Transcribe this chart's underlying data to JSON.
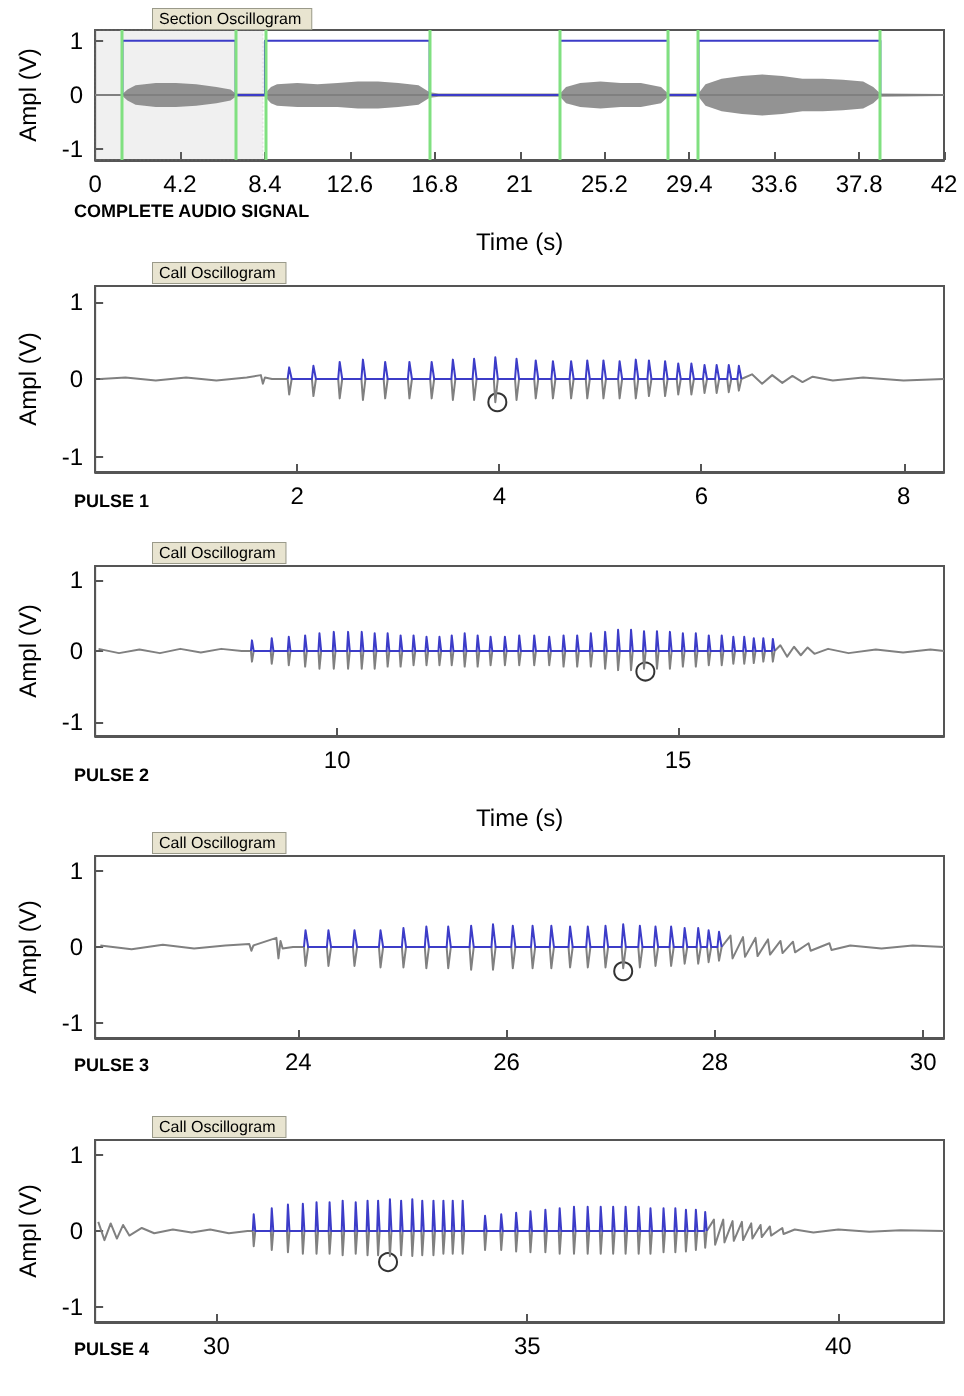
{
  "chart_data": [
    {
      "type": "line",
      "xlabel": "Time (s)",
      "ylabel": "Ampl (V)",
      "annotations": [
        "Section Oscillogram",
        "COMPLETE AUDIO SIGNAL"
      ],
      "xlim": [
        0,
        42
      ],
      "xticks": [
        0,
        4.2,
        8.4,
        12.6,
        16.8,
        21,
        25.2,
        29.4,
        33.6,
        37.8,
        42
      ],
      "ylim": [
        -1.2,
        1.2
      ],
      "yticks": [
        -1,
        0,
        1
      ],
      "grid": false,
      "marker": "none",
      "series": [
        {
          "color": "#808080",
          "x": [
            0,
            1.35,
            1.6,
            2,
            3,
            4,
            5,
            6,
            6.7,
            6.95,
            8.4,
            8.7,
            9,
            10,
            11,
            12,
            13,
            14,
            15,
            16,
            16.55,
            17,
            20,
            23.0,
            23.3,
            24,
            25,
            26,
            27,
            28,
            28.35,
            29.1,
            29.85,
            30.2,
            31,
            32,
            33,
            34,
            35,
            36,
            37,
            38,
            38.5,
            38.85,
            42
          ],
          "values": [
            0,
            0,
            0,
            0,
            0,
            0,
            0,
            0,
            0,
            0,
            0,
            0,
            0,
            0,
            0,
            0,
            0,
            0,
            0,
            0,
            0,
            0,
            0,
            0,
            0,
            0,
            0,
            0,
            0,
            0,
            0,
            0,
            0,
            0,
            0,
            0,
            0,
            0,
            0,
            0,
            0,
            0,
            0,
            0,
            0
          ],
          "upper": [
            0.02,
            0.02,
            0.1,
            0.18,
            0.22,
            0.22,
            0.2,
            0.15,
            0.1,
            0.03,
            0.03,
            0.15,
            0.2,
            0.22,
            0.2,
            0.22,
            0.25,
            0.25,
            0.22,
            0.18,
            0.05,
            0.03,
            0.03,
            0.03,
            0.15,
            0.22,
            0.25,
            0.22,
            0.22,
            0.15,
            0.03,
            0.03,
            0.03,
            0.2,
            0.3,
            0.35,
            0.38,
            0.35,
            0.3,
            0.3,
            0.28,
            0.25,
            0.15,
            0.03,
            0.02
          ],
          "lower": [
            -0.02,
            -0.02,
            -0.1,
            -0.18,
            -0.22,
            -0.22,
            -0.2,
            -0.15,
            -0.1,
            -0.03,
            -0.03,
            -0.15,
            -0.2,
            -0.22,
            -0.22,
            -0.22,
            -0.25,
            -0.25,
            -0.22,
            -0.18,
            -0.05,
            -0.03,
            -0.03,
            -0.03,
            -0.15,
            -0.22,
            -0.25,
            -0.22,
            -0.22,
            -0.15,
            -0.03,
            -0.03,
            -0.03,
            -0.2,
            -0.3,
            -0.35,
            -0.38,
            -0.35,
            -0.3,
            -0.3,
            -0.28,
            -0.25,
            -0.15,
            -0.03,
            -0.02
          ]
        },
        {
          "color": "#3c3cc8",
          "x": [
            1.35,
            1.35,
            6.95,
            6.95,
            8.4,
            8.4,
            16.55,
            16.55,
            23.0,
            23.0,
            28.35,
            28.35,
            29.85,
            29.85,
            38.85,
            38.85
          ],
          "values": [
            0,
            1,
            1,
            0,
            0,
            1,
            1,
            0,
            0,
            1,
            1,
            0,
            0,
            1,
            1,
            0
          ]
        }
      ],
      "ref_lines": [
        {
          "axis": "x",
          "value": 1.35,
          "color": "#80e080"
        },
        {
          "axis": "x",
          "value": 6.95,
          "color": "#80e080"
        },
        {
          "axis": "x",
          "value": 8.4,
          "color": "#80e080"
        },
        {
          "axis": "x",
          "value": 16.55,
          "color": "#80e080"
        },
        {
          "axis": "x",
          "value": 23.0,
          "color": "#80e080"
        },
        {
          "axis": "x",
          "value": 28.35,
          "color": "#80e080"
        },
        {
          "axis": "x",
          "value": 29.85,
          "color": "#80e080"
        },
        {
          "axis": "x",
          "value": 38.85,
          "color": "#80e080"
        }
      ],
      "bands": [
        {
          "axis": "x",
          "from": 0,
          "to": 8.3,
          "color": "#808080"
        }
      ]
    },
    {
      "type": "line",
      "ylabel": "Ampl (V)",
      "annotations": [
        "Call Oscillogram",
        "PULSE 1"
      ],
      "xlim": [
        0,
        8.4
      ],
      "xticks": [
        2,
        4,
        6,
        8
      ],
      "ylim": [
        -1.2,
        1.2
      ],
      "yticks": [
        -1,
        0,
        1
      ],
      "grid": false,
      "marker": "none",
      "x": [
        0.05,
        0.3,
        0.6,
        0.9,
        1.2,
        1.5,
        1.64,
        1.66,
        1.68,
        1.75,
        1.905,
        1.92,
        1.945,
        2.145,
        2.16,
        2.185,
        2.405,
        2.42,
        2.445,
        2.635,
        2.65,
        2.675,
        2.855,
        2.87,
        2.895,
        3.095,
        3.11,
        3.135,
        3.315,
        3.33,
        3.355,
        3.525,
        3.54,
        3.565,
        3.735,
        3.75,
        3.775,
        3.945,
        3.96,
        3.985,
        4.155,
        4.17,
        4.195,
        4.345,
        4.36,
        4.385,
        4.515,
        4.53,
        4.555,
        4.695,
        4.71,
        4.735,
        4.855,
        4.87,
        4.895,
        5.015,
        5.03,
        5.055,
        5.175,
        5.19,
        5.215,
        5.335,
        5.35,
        5.375,
        5.465,
        5.48,
        5.505,
        5.625,
        5.64,
        5.665,
        5.755,
        5.77,
        5.795,
        5.885,
        5.9,
        5.925,
        6.015,
        6.03,
        6.055,
        6.135,
        6.15,
        6.175,
        6.255,
        6.27,
        6.295,
        6.355,
        6.37,
        6.395,
        6.5,
        6.6,
        6.7,
        6.8,
        6.9,
        7.0,
        7.1,
        7.3,
        7.6,
        8.0,
        8.4
      ],
      "series": [
        {
          "color": "#808080",
          "values": [
            0,
            0.02,
            -0.02,
            0.02,
            -0.02,
            0.02,
            0.05,
            -0.06,
            0.02,
            0,
            0,
            -0.2,
            0,
            0,
            -0.22,
            0,
            0,
            -0.25,
            0,
            0,
            -0.27,
            0,
            0,
            -0.25,
            0,
            0,
            -0.25,
            0,
            0,
            -0.25,
            0,
            0,
            -0.27,
            0,
            0,
            -0.27,
            0,
            0,
            -0.3,
            0,
            0,
            -0.27,
            0,
            0,
            -0.25,
            0,
            0,
            -0.25,
            0,
            0,
            -0.25,
            0,
            0,
            -0.25,
            0,
            0,
            -0.25,
            0,
            0,
            -0.25,
            0,
            0,
            -0.25,
            0,
            0,
            -0.22,
            0,
            0,
            -0.22,
            0,
            0,
            -0.2,
            0,
            0,
            -0.2,
            0,
            0,
            -0.18,
            0,
            0,
            -0.18,
            0,
            0,
            -0.17,
            0,
            0,
            -0.15,
            0,
            0.06,
            -0.06,
            0.05,
            -0.05,
            0.04,
            -0.04,
            0.03,
            -0.02,
            0.02,
            -0.02,
            0
          ]
        },
        {
          "color": "#3c3cc8",
          "values": [
            null,
            null,
            null,
            null,
            null,
            null,
            null,
            null,
            null,
            null,
            0,
            0.15,
            0,
            0,
            0.17,
            0,
            0,
            0.22,
            0,
            0,
            0.25,
            0,
            0,
            0.22,
            0,
            0,
            0.22,
            0,
            0,
            0.22,
            0,
            0,
            0.25,
            0,
            0,
            0.26,
            0,
            0,
            0.28,
            0,
            0,
            0.26,
            0,
            0,
            0.24,
            0,
            0,
            0.23,
            0,
            0,
            0.23,
            0,
            0,
            0.24,
            0,
            0,
            0.24,
            0,
            0,
            0.23,
            0,
            0,
            0.25,
            0,
            0,
            0.24,
            0,
            0,
            0.23,
            0,
            0,
            0.2,
            0,
            0,
            0.2,
            0,
            0,
            0.18,
            0,
            0,
            0.18,
            0,
            0,
            0.18,
            0,
            0,
            0.17,
            0,
            null,
            null,
            null,
            null,
            null,
            null,
            null,
            null,
            null,
            null,
            null
          ]
        },
        {
          "type": "scatter",
          "marker": "circle",
          "color": "#000000",
          "x": [
            3.98
          ],
          "values": [
            -0.3
          ]
        }
      ]
    },
    {
      "type": "line",
      "xlabel": "Time (s)",
      "ylabel": "Ampl (V)",
      "annotations": [
        "Call Oscillogram",
        "PULSE 2"
      ],
      "xlim": [
        6.45,
        18.9
      ],
      "xticks": [
        10,
        15
      ],
      "ylim": [
        -1.2,
        1.2
      ],
      "yticks": [
        -1,
        0,
        1
      ],
      "grid": false,
      "marker": "none",
      "x": [
        6.5,
        6.8,
        7.1,
        7.4,
        7.7,
        8.0,
        8.3,
        8.6,
        8.735,
        8.75,
        8.775,
        9.025,
        9.04,
        9.065,
        9.275,
        9.29,
        9.315,
        9.515,
        9.53,
        9.555,
        9.725,
        9.74,
        9.765,
        9.935,
        9.95,
        9.975,
        10.145,
        10.16,
        10.185,
        10.345,
        10.36,
        10.385,
        10.535,
        10.55,
        10.575,
        10.725,
        10.74,
        10.765,
        10.915,
        10.93,
        10.955,
        11.105,
        11.12,
        11.145,
        11.295,
        11.31,
        11.335,
        11.485,
        11.5,
        11.525,
        11.665,
        11.68,
        11.705,
        11.855,
        11.87,
        11.895,
        12.045,
        12.06,
        12.085,
        12.235,
        12.25,
        12.275,
        12.445,
        12.46,
        12.485,
        12.655,
        12.67,
        12.695,
        12.875,
        12.89,
        12.915,
        13.095,
        13.11,
        13.135,
        13.305,
        13.32,
        13.345,
        13.505,
        13.52,
        13.545,
        13.705,
        13.72,
        13.745,
        13.915,
        13.93,
        13.955,
        14.105,
        14.12,
        14.145,
        14.295,
        14.31,
        14.335,
        14.485,
        14.5,
        14.525,
        14.675,
        14.69,
        14.715,
        14.865,
        14.88,
        14.905,
        15.055,
        15.07,
        15.095,
        15.245,
        15.26,
        15.285,
        15.435,
        15.45,
        15.475,
        15.625,
        15.64,
        15.665,
        15.795,
        15.81,
        15.835,
        15.955,
        15.97,
        15.995,
        16.095,
        16.11,
        16.135,
        16.235,
        16.25,
        16.275,
        16.375,
        16.39,
        16.415,
        16.5,
        16.6,
        16.7,
        16.8,
        16.9,
        17.0,
        17.2,
        17.5,
        17.9,
        18.3,
        18.7,
        18.9
      ],
      "series": [
        {
          "color": "#808080",
          "values": [
            0.03,
            -0.03,
            0.02,
            -0.03,
            0.03,
            -0.02,
            0.03,
            0,
            0,
            -0.15,
            0,
            0,
            -0.18,
            0,
            0,
            -0.2,
            0,
            0,
            -0.22,
            0,
            0,
            -0.25,
            0,
            0,
            -0.25,
            0,
            0,
            -0.25,
            0,
            0,
            -0.25,
            0,
            0,
            -0.25,
            0,
            0,
            -0.22,
            0,
            0,
            -0.22,
            0,
            0,
            -0.2,
            0,
            0,
            -0.2,
            0,
            0,
            -0.2,
            0,
            0,
            -0.2,
            0,
            0,
            -0.22,
            0,
            0,
            -0.22,
            0,
            0,
            -0.2,
            0,
            0,
            -0.2,
            0,
            0,
            -0.2,
            0,
            0,
            -0.2,
            0,
            0,
            -0.2,
            0,
            0,
            -0.22,
            0,
            0,
            -0.22,
            0,
            0,
            -0.22,
            0,
            0,
            -0.25,
            0,
            0,
            -0.27,
            0,
            0,
            -0.27,
            0,
            0,
            -0.25,
            0,
            0,
            -0.25,
            0,
            0,
            -0.25,
            0,
            0,
            -0.22,
            0,
            0,
            -0.22,
            0,
            0,
            -0.2,
            0,
            0,
            -0.2,
            0,
            0,
            -0.18,
            0,
            0,
            -0.18,
            0,
            0,
            -0.17,
            0,
            0,
            -0.15,
            0,
            0,
            -0.15,
            0,
            0.08,
            -0.08,
            0.06,
            -0.06,
            0.05,
            -0.04,
            0.03,
            -0.03,
            0.02,
            -0.02,
            0.02,
            0
          ]
        },
        {
          "color": "#3c3cc8",
          "values": [
            null,
            null,
            null,
            null,
            null,
            null,
            null,
            null,
            0,
            0.15,
            0,
            0,
            0.18,
            0,
            0,
            0.2,
            0,
            0,
            0.22,
            0,
            0,
            0.25,
            0,
            0,
            0.27,
            0,
            0,
            0.27,
            0,
            0,
            0.27,
            0,
            0,
            0.25,
            0,
            0,
            0.25,
            0,
            0,
            0.22,
            0,
            0,
            0.22,
            0,
            0,
            0.2,
            0,
            0,
            0.2,
            0,
            0,
            0.22,
            0,
            0,
            0.25,
            0,
            0,
            0.22,
            0,
            0,
            0.2,
            0,
            0,
            0.2,
            0,
            0,
            0.22,
            0,
            0,
            0.22,
            0,
            0,
            0.2,
            0,
            0,
            0.22,
            0,
            0,
            0.22,
            0,
            0,
            0.25,
            0,
            0,
            0.27,
            0,
            0,
            0.3,
            0,
            0,
            0.3,
            0,
            0,
            0.28,
            0,
            0,
            0.28,
            0,
            0,
            0.27,
            0,
            0,
            0.25,
            0,
            0,
            0.25,
            0,
            0,
            0.22,
            0,
            0,
            0.22,
            0,
            0,
            0.2,
            0,
            0,
            0.2,
            0,
            0,
            0.18,
            0,
            0,
            0.18,
            0,
            0,
            0.17,
            0,
            null,
            null,
            null,
            null,
            null,
            null,
            null,
            null,
            null,
            null,
            null,
            null
          ]
        },
        {
          "type": "scatter",
          "marker": "circle",
          "color": "#000000",
          "x": [
            14.52
          ],
          "values": [
            -0.29
          ]
        }
      ]
    },
    {
      "type": "line",
      "ylabel": "Ampl (V)",
      "annotations": [
        "Call Oscillogram",
        "PULSE 3"
      ],
      "xlim": [
        22.05,
        30.2
      ],
      "xticks": [
        24,
        26,
        28,
        30
      ],
      "ylim": [
        -1.2,
        1.2
      ],
      "yticks": [
        -1,
        0,
        1
      ],
      "grid": false,
      "marker": "none",
      "x": [
        22.1,
        22.4,
        22.7,
        23.0,
        23.3,
        23.53,
        23.55,
        23.57,
        23.79,
        23.81,
        23.83,
        23.85,
        23.95,
        24.055,
        24.07,
        24.095,
        24.275,
        24.29,
        24.315,
        24.525,
        24.54,
        24.565,
        24.775,
        24.79,
        24.815,
        24.995,
        25.01,
        25.035,
        25.215,
        25.23,
        25.255,
        25.425,
        25.44,
        25.465,
        25.645,
        25.66,
        25.685,
        25.855,
        25.87,
        25.895,
        26.045,
        26.06,
        26.085,
        26.235,
        26.25,
        26.275,
        26.415,
        26.43,
        26.455,
        26.595,
        26.61,
        26.635,
        26.765,
        26.78,
        26.805,
        26.935,
        26.95,
        26.975,
        27.105,
        27.12,
        27.145,
        27.265,
        27.28,
        27.305,
        27.415,
        27.43,
        27.455,
        27.565,
        27.58,
        27.605,
        27.695,
        27.71,
        27.735,
        27.825,
        27.84,
        27.865,
        27.925,
        27.94,
        27.965,
        28.025,
        28.04,
        28.065,
        28.15,
        28.17,
        28.27,
        28.29,
        28.39,
        28.41,
        28.51,
        28.53,
        28.63,
        28.65,
        28.75,
        28.77,
        28.9,
        28.92,
        29.1,
        29.12,
        29.3,
        29.6,
        29.9,
        30.2
      ],
      "series": [
        {
          "color": "#808080",
          "values": [
            0.02,
            -0.03,
            0.03,
            -0.02,
            0.02,
            0.04,
            -0.05,
            0.02,
            0.12,
            -0.15,
            0.08,
            -0.02,
            0,
            0,
            -0.25,
            0,
            0,
            -0.25,
            0,
            0,
            -0.25,
            0,
            0,
            -0.27,
            0,
            0,
            -0.27,
            0,
            0,
            -0.28,
            0,
            0,
            -0.28,
            0,
            0,
            -0.3,
            0,
            0,
            -0.3,
            0,
            0,
            -0.28,
            0,
            0,
            -0.28,
            0,
            0,
            -0.28,
            0,
            0,
            -0.27,
            0,
            0,
            -0.27,
            0,
            0,
            -0.27,
            0,
            0,
            -0.28,
            0,
            0,
            -0.27,
            0,
            0,
            -0.25,
            0,
            0,
            -0.25,
            0,
            0,
            -0.22,
            0,
            0,
            -0.22,
            0,
            0,
            -0.2,
            0,
            0,
            -0.18,
            0,
            0.15,
            -0.15,
            0.13,
            -0.13,
            0.12,
            -0.12,
            0.1,
            -0.1,
            0.08,
            -0.08,
            0.07,
            -0.07,
            0.05,
            -0.05,
            0.05,
            -0.04,
            0.02,
            -0.02,
            0.02,
            0
          ]
        },
        {
          "color": "#3c3cc8",
          "values": [
            null,
            null,
            null,
            null,
            null,
            null,
            null,
            null,
            null,
            null,
            null,
            null,
            null,
            0,
            0.22,
            0,
            0,
            0.22,
            0,
            0,
            0.22,
            0,
            0,
            0.22,
            0,
            0,
            0.25,
            0,
            0,
            0.27,
            0,
            0,
            0.27,
            0,
            0,
            0.28,
            0,
            0,
            0.3,
            0,
            0,
            0.28,
            0,
            0,
            0.28,
            0,
            0,
            0.28,
            0,
            0,
            0.27,
            0,
            0,
            0.27,
            0,
            0,
            0.28,
            0,
            0,
            0.3,
            0,
            0,
            0.28,
            0,
            0,
            0.27,
            0,
            0,
            0.27,
            0,
            0,
            0.25,
            0,
            0,
            0.25,
            0,
            0,
            0.22,
            0,
            0,
            0.2,
            0,
            null,
            null,
            null,
            null,
            null,
            null,
            null,
            null,
            null,
            null,
            null,
            null,
            null,
            null,
            null,
            null,
            null,
            null,
            null,
            null
          ]
        },
        {
          "type": "scatter",
          "marker": "circle",
          "color": "#000000",
          "x": [
            27.12
          ],
          "values": [
            -0.32
          ]
        }
      ]
    },
    {
      "type": "line",
      "ylabel": "Ampl (V)",
      "annotations": [
        "Call Oscillogram",
        "PULSE 4"
      ],
      "xlim": [
        28.05,
        41.7
      ],
      "xticks": [
        30,
        35,
        40
      ],
      "ylim": [
        -1.2,
        1.2
      ],
      "yticks": [
        -1,
        0,
        1
      ],
      "grid": false,
      "marker": "none",
      "x": [
        28.1,
        28.2,
        28.3,
        28.4,
        28.5,
        28.6,
        28.8,
        29.0,
        29.3,
        29.6,
        29.9,
        30.2,
        30.5,
        30.585,
        30.6,
        30.625,
        30.875,
        30.89,
        30.915,
        31.135,
        31.15,
        31.175,
        31.375,
        31.39,
        31.415,
        31.595,
        31.61,
        31.635,
        31.805,
        31.82,
        31.845,
        32.015,
        32.03,
        32.055,
        32.225,
        32.24,
        32.265,
        32.415,
        32.43,
        32.455,
        32.585,
        32.6,
        32.625,
        32.775,
        32.79,
        32.815,
        32.955,
        32.97,
        32.995,
        33.135,
        33.15,
        33.175,
        33.295,
        33.31,
        33.335,
        33.475,
        33.49,
        33.515,
        33.635,
        33.65,
        33.675,
        33.785,
        33.8,
        33.825,
        33.945,
        33.96,
        33.985,
        34.305,
        34.32,
        34.345,
        34.565,
        34.58,
        34.605,
        34.805,
        34.82,
        34.845,
        35.035,
        35.05,
        35.075,
        35.275,
        35.29,
        35.315,
        35.505,
        35.52,
        35.545,
        35.735,
        35.75,
        35.775,
        35.955,
        35.97,
        35.995,
        36.165,
        36.18,
        36.205,
        36.365,
        36.38,
        36.405,
        36.565,
        36.58,
        36.605,
        36.775,
        36.79,
        36.815,
        36.965,
        36.98,
        37.005,
        37.175,
        37.19,
        37.215,
        37.365,
        37.38,
        37.405,
        37.535,
        37.55,
        37.575,
        37.695,
        37.71,
        37.735,
        37.845,
        37.86,
        37.885,
        38.0,
        38.02,
        38.15,
        38.17,
        38.3,
        38.32,
        38.45,
        38.47,
        38.6,
        38.62,
        38.75,
        38.77,
        38.9,
        38.92,
        39.1,
        39.12,
        39.3,
        39.6,
        40.0,
        40.5,
        41.0,
        41.7
      ],
      "series": [
        {
          "color": "#808080",
          "values": [
            0.12,
            -0.12,
            0.1,
            -0.1,
            0.08,
            -0.06,
            0.04,
            -0.03,
            0.02,
            -0.02,
            0.02,
            -0.03,
            0,
            0,
            -0.2,
            0,
            0,
            -0.25,
            0,
            0,
            -0.28,
            0,
            0,
            -0.3,
            0,
            0,
            -0.3,
            0,
            0,
            -0.3,
            0,
            0,
            -0.32,
            0,
            0,
            -0.3,
            0,
            0,
            -0.32,
            0,
            0,
            -0.32,
            0,
            0,
            -0.33,
            0,
            0,
            -0.32,
            0,
            0,
            -0.33,
            0,
            0,
            -0.32,
            0,
            0,
            -0.32,
            0,
            0,
            -0.3,
            0,
            0,
            -0.3,
            0,
            0,
            -0.3,
            0,
            0,
            -0.25,
            0,
            0,
            -0.25,
            0,
            0,
            -0.27,
            0,
            0,
            -0.28,
            0,
            0,
            -0.28,
            0,
            0,
            -0.3,
            0,
            0,
            -0.3,
            0,
            0,
            -0.3,
            0,
            0,
            -0.3,
            0,
            0,
            -0.3,
            0,
            0,
            -0.3,
            0,
            0,
            -0.3,
            0,
            0,
            -0.3,
            0,
            0,
            -0.28,
            0,
            0,
            -0.28,
            0,
            0,
            -0.27,
            0,
            0,
            -0.25,
            0,
            0,
            -0.22,
            0,
            0.15,
            -0.18,
            0.15,
            -0.15,
            0.13,
            -0.13,
            0.12,
            -0.12,
            0.1,
            -0.1,
            0.08,
            -0.08,
            0.06,
            -0.06,
            0.04,
            -0.04,
            0.02,
            -0.02,
            0.02,
            -0.01,
            0.01,
            0
          ]
        },
        {
          "color": "#3c3cc8",
          "values": [
            null,
            null,
            null,
            null,
            null,
            null,
            null,
            null,
            null,
            null,
            null,
            null,
            null,
            0,
            0.22,
            0,
            0,
            0.3,
            0,
            0,
            0.35,
            0,
            0,
            0.36,
            0,
            0,
            0.38,
            0,
            0,
            0.38,
            0,
            0,
            0.4,
            0,
            0,
            0.38,
            0,
            0,
            0.4,
            0,
            0,
            0.4,
            0,
            0,
            0.42,
            0,
            0,
            0.4,
            0,
            0,
            0.42,
            0,
            0,
            0.4,
            0,
            0,
            0.4,
            0,
            0,
            0.4,
            0,
            0,
            0.4,
            0,
            0,
            0.4,
            0,
            0,
            0.2,
            0,
            0,
            0.22,
            0,
            0,
            0.24,
            0,
            0,
            0.26,
            0,
            0,
            0.28,
            0,
            0,
            0.3,
            0,
            0,
            0.32,
            0,
            0,
            0.32,
            0,
            0,
            0.32,
            0,
            0,
            0.32,
            0,
            0,
            0.32,
            0,
            0,
            0.32,
            0,
            0,
            0.3,
            0,
            0,
            0.3,
            0,
            0,
            0.3,
            0,
            0,
            0.28,
            0,
            0,
            0.28,
            0,
            0,
            0.25,
            0,
            null,
            null,
            null,
            null,
            null,
            null,
            null,
            null,
            null,
            null,
            null,
            null,
            null,
            null,
            null,
            null,
            null,
            null,
            null,
            null,
            null,
            null
          ]
        },
        {
          "type": "scatter",
          "marker": "circle",
          "color": "#000000",
          "x": [
            32.76
          ],
          "values": [
            -0.41
          ]
        }
      ]
    }
  ]
}
